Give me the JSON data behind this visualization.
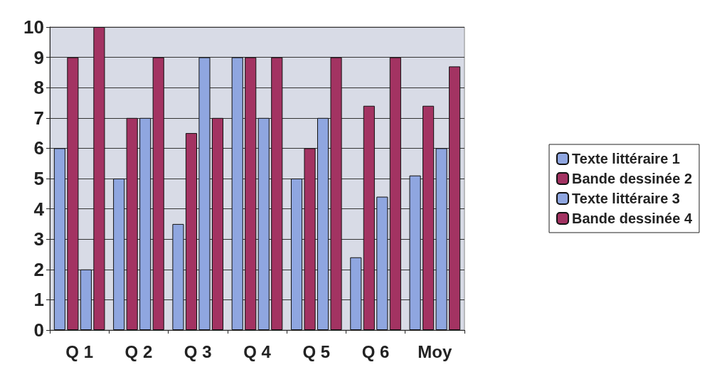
{
  "chart_data": {
    "type": "bar",
    "categories": [
      "Q 1",
      "Q 2",
      "Q 3",
      "Q 4",
      "Q 5",
      "Q 6",
      "Moy"
    ],
    "series": [
      {
        "name": "Texte littéraire 1",
        "color": "#8fa6e0",
        "values": [
          6,
          5,
          3.5,
          9,
          5,
          2.4,
          5.1
        ]
      },
      {
        "name": "Bande dessinée 2",
        "color": "#a33362",
        "values": [
          9,
          7,
          6.5,
          9,
          6,
          7.4,
          7.4
        ]
      },
      {
        "name": "Texte littéraire 3",
        "color": "#8fa6e0",
        "values": [
          2,
          7,
          9,
          7,
          7,
          4.4,
          6
        ]
      },
      {
        "name": "Bande dessinée 4",
        "color": "#a33362",
        "values": [
          10,
          9,
          7,
          9,
          9,
          9,
          8.7
        ]
      }
    ],
    "ylim": [
      0,
      10
    ],
    "yticks": [
      0,
      1,
      2,
      3,
      4,
      5,
      6,
      7,
      8,
      9,
      10
    ],
    "grid": "y",
    "legend": "right"
  }
}
